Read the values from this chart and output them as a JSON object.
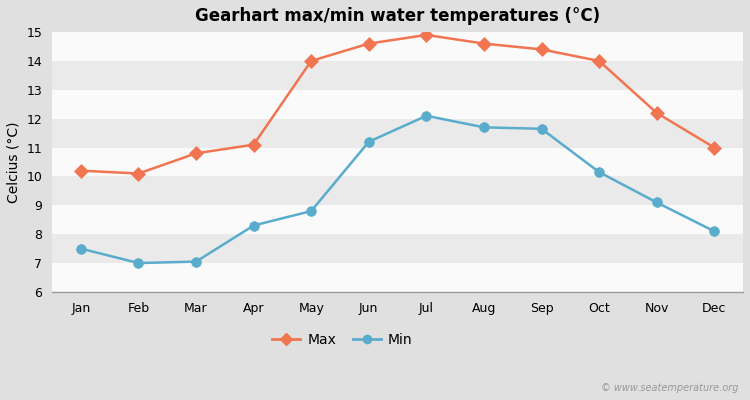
{
  "title": "Gearhart max/min water temperatures (°C)",
  "ylabel": "Celcius (°C)",
  "months": [
    "Jan",
    "Feb",
    "Mar",
    "Apr",
    "May",
    "Jun",
    "Jul",
    "Aug",
    "Sep",
    "Oct",
    "Nov",
    "Dec"
  ],
  "max_values": [
    10.2,
    10.1,
    10.8,
    11.1,
    14.0,
    14.6,
    14.9,
    14.6,
    14.4,
    14.0,
    12.2,
    11.0
  ],
  "min_values": [
    7.5,
    7.0,
    7.05,
    8.3,
    8.8,
    11.2,
    12.1,
    11.7,
    11.65,
    10.15,
    9.1,
    8.1
  ],
  "max_color": "#f07550",
  "min_color": "#5aaccc",
  "fig_bg_color": "#e0e0e0",
  "plot_bg_color": "#f5f5f5",
  "band_color": "#e8e8e8",
  "ylim": [
    6,
    15
  ],
  "yticks": [
    6,
    7,
    8,
    9,
    10,
    11,
    12,
    13,
    14,
    15
  ],
  "legend_labels": [
    "Max",
    "Min"
  ],
  "watermark": "© www.seatemperature.org",
  "linewidth": 1.8,
  "max_markersize": 7,
  "min_markersize": 7,
  "title_fontsize": 12,
  "axis_fontsize": 9,
  "legend_fontsize": 10
}
